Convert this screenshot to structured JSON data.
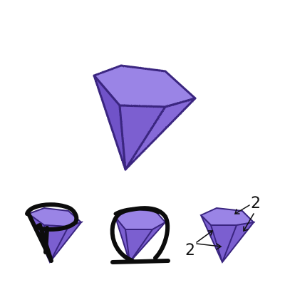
{
  "colors": {
    "gem_fill": "#7b5fd0",
    "gem_light": "#9a84e6",
    "gem_dark": "#5a3fb0",
    "gem_outline": "#3a2580",
    "ink": "#0c0c0c",
    "background": "#ffffff"
  },
  "option_c": {
    "label_a": "2",
    "label_b": "2"
  }
}
